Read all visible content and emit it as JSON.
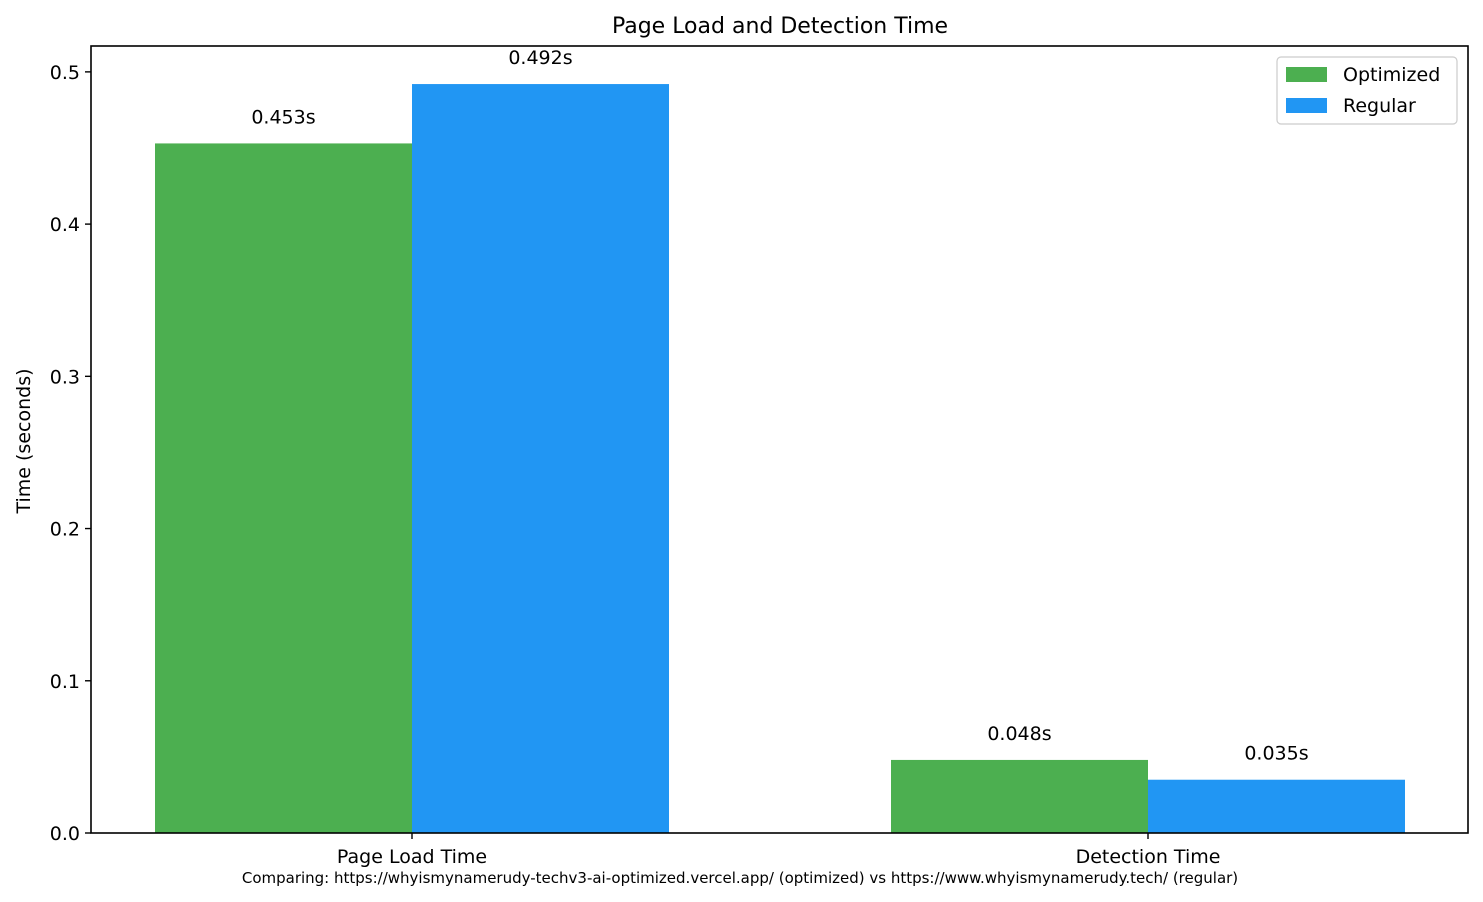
{
  "chart_data": {
    "type": "bar",
    "title": "Page Load and Detection Time",
    "xlabel": "",
    "ylabel": "Time (seconds)",
    "categories": [
      "Page Load Time",
      "Detection Time"
    ],
    "series": [
      {
        "name": "Optimized",
        "color": "#4caf50",
        "values": [
          0.453,
          0.048
        ],
        "labels": [
          "0.453s",
          "0.048s"
        ]
      },
      {
        "name": "Regular",
        "color": "#2196f3",
        "values": [
          0.492,
          0.035
        ],
        "labels": [
          "0.492s",
          "0.035s"
        ]
      }
    ],
    "ylim": [
      0,
      0.517
    ],
    "yticks": [
      0.0,
      0.1,
      0.2,
      0.3,
      0.4,
      0.5
    ],
    "ytick_labels": [
      "0.0",
      "0.1",
      "0.2",
      "0.3",
      "0.4",
      "0.5"
    ],
    "grid": false,
    "legend_position": "top-right",
    "footnote": "Comparing: https://whyismynamerudy-techv3-ai-optimized.vercel.app/ (optimized) vs https://www.whyismynamerudy.tech/ (regular)"
  }
}
